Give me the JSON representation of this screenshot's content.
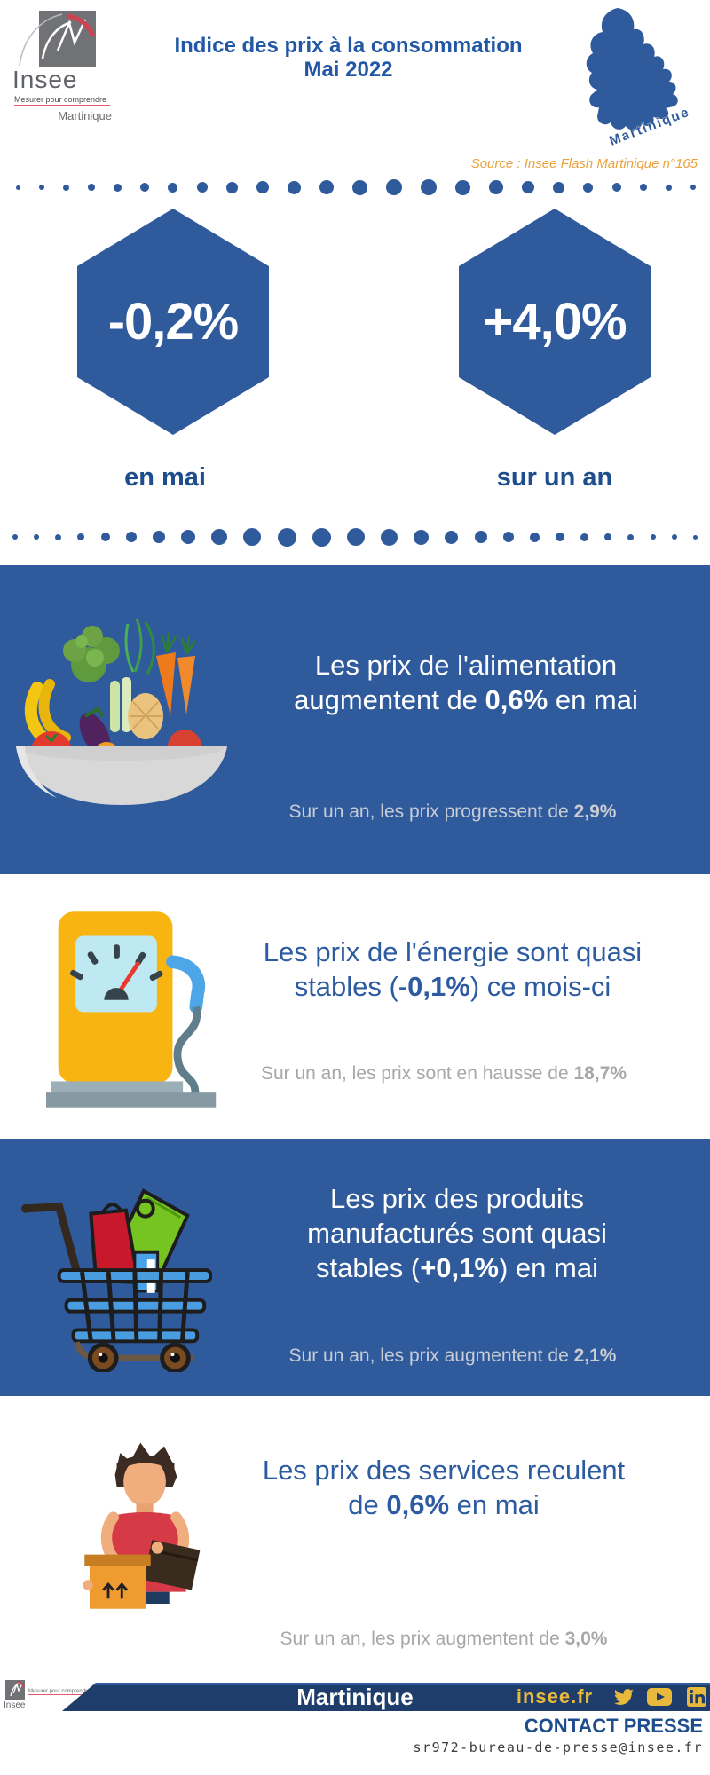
{
  "colors": {
    "primary_blue": "#2f5a9c",
    "title_blue": "#2157a5",
    "label_blue": "#1d4d8c",
    "headline_blue": "#2d5ba1",
    "dark_navy": "#1f3d6b",
    "gold": "#e9b93c",
    "source_orange": "#e9a23c",
    "sub_gray_on_blue": "#c8ccd5",
    "sub_gray_on_white": "#a7a7a7"
  },
  "header": {
    "logo": {
      "name": "Insee",
      "tagline": "Mesurer pour comprendre",
      "region": "Martinique"
    },
    "title_line1": "Indice des prix à la consommation",
    "title_line2": "Mai 2022",
    "map_label": "Martinique",
    "source": "Source : Insee Flash Martinique n°165"
  },
  "kpis": [
    {
      "value": "-0,2%",
      "label": "en mai"
    },
    {
      "value": "+4,0%",
      "label": "sur un an"
    }
  ],
  "sections": [
    {
      "name": "alimentation",
      "icon": "food-bowl-icon",
      "line1": "Les prix de l'alimentation",
      "line2_pre": "augmentent de ",
      "line2_bold": "0,6%",
      "line2_post": " en mai",
      "sub_pre": "Sur un an, les prix progressent de ",
      "sub_bold": "2,9%"
    },
    {
      "name": "energie",
      "icon": "fuel-pump-icon",
      "line1": "Les prix de l'énergie sont quasi",
      "line2_pre": "stables (",
      "line2_bold": "-0,1%",
      "line2_post": ") ce mois-ci",
      "sub_pre": "Sur un an, les prix sont en hausse de ",
      "sub_bold": "18,7%"
    },
    {
      "name": "produits-manufactures",
      "icon": "shopping-cart-icon",
      "line1": "Les prix des produits",
      "line2": "manufacturés sont quasi",
      "line3_pre": "stables (",
      "line3_bold": "+0,1%",
      "line3_post": ") en mai",
      "sub_pre": "Sur un an, les prix augmentent de ",
      "sub_bold": "2,1%"
    },
    {
      "name": "services",
      "icon": "delivery-person-icon",
      "line1": "Les prix des services reculent",
      "line2_pre": "de ",
      "line2_bold": "0,6%",
      "line2_post": " en mai",
      "sub_pre": "Sur un an, les prix augmentent de ",
      "sub_bold": "3,0%"
    }
  ],
  "footer": {
    "logo": {
      "name": "Insee",
      "tagline": "Mesurer pour comprendre"
    },
    "region": "Martinique",
    "website": "insee.fr",
    "social": [
      "twitter-icon",
      "youtube-icon",
      "linkedin-icon"
    ],
    "contact_title": "CONTACT PRESSE",
    "contact_email": "sr972-bureau-de-presse@insee.fr"
  }
}
